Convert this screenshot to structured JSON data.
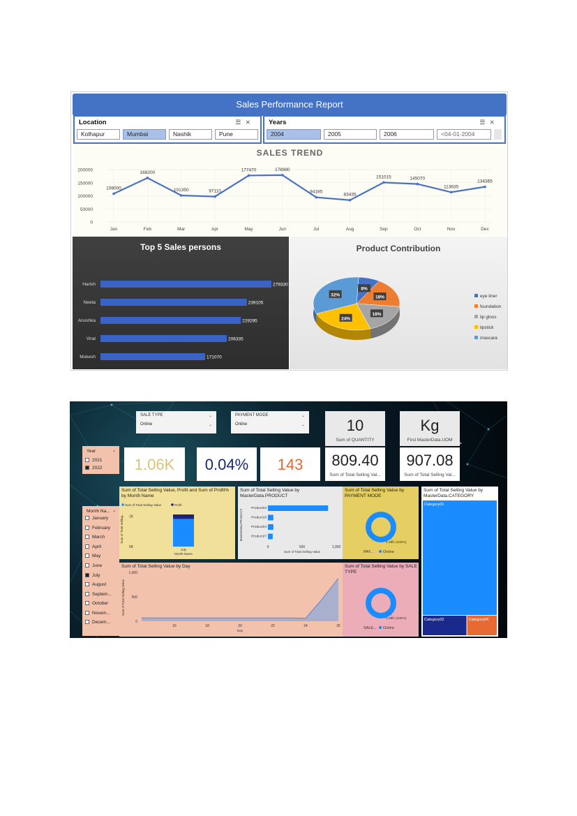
{
  "dashboard1": {
    "title": "Sales Performance Report",
    "location_slicer": {
      "title": "Location",
      "options": [
        "Kolhapur",
        "Mumbai",
        "Nashik",
        "Pune"
      ],
      "selected": "Mumbai"
    },
    "years_slicer": {
      "title": "Years",
      "options": [
        "2004",
        "2005",
        "2006",
        "<04-01-2004"
      ],
      "selected": "2004"
    },
    "slicer_icons": [
      "multi-select-icon",
      "clear-filter-icon"
    ]
  },
  "dashboard2": {
    "sale_type": {
      "label": "SALE TYPE",
      "value": "Online"
    },
    "payment_mode": {
      "label": "PAYMENT MODE",
      "value": "Online"
    },
    "kpis": [
      {
        "value": "10",
        "label": "Sum of QUANTITY"
      },
      {
        "value": "Kg",
        "label": "First MasterData.UOM"
      },
      {
        "value": "809.40",
        "label": "Sum of Total Selling Val..."
      },
      {
        "value": "907.08",
        "label": "Sum of Total Selling Val..."
      },
      {
        "value": "1.06K",
        "label": "",
        "color": "#d8c47a"
      },
      {
        "value": "0.04%",
        "label": "",
        "color": "#1a2a6c"
      },
      {
        "value": "143",
        "label": "",
        "color": "#e06a3a"
      }
    ],
    "year_slicer": {
      "title": "Year",
      "options": [
        "2021",
        "2022"
      ],
      "checked": [
        "2022"
      ]
    },
    "month_slicer": {
      "title": "Month Na...",
      "options": [
        "January",
        "February",
        "March",
        "April",
        "May",
        "June",
        "July",
        "August",
        "Septem...",
        "October",
        "Novem...",
        "Decem..."
      ],
      "checked": [
        "July"
      ]
    }
  },
  "chart_data": [
    {
      "type": "line",
      "title": "SALES TREND",
      "categories": [
        "Jan",
        "Feb",
        "Mar",
        "Apr",
        "May",
        "Jun",
        "Jul",
        "Aug",
        "Sep",
        "Oct",
        "Nov",
        "Dec"
      ],
      "values": [
        108000,
        168200,
        101350,
        97110,
        177470,
        178980,
        94185,
        83435,
        151015,
        145070,
        113635,
        134365
      ],
      "yticks": [
        "200000",
        "150000",
        "100000",
        "50000",
        "0"
      ],
      "ylim": [
        0,
        200000
      ],
      "grid": true,
      "color": "#4a72c4"
    },
    {
      "type": "bar",
      "orientation": "horizontal",
      "title": "Top 5 Sales persons",
      "categories": [
        "Harish",
        "Neeta",
        "Anushka",
        "Virat",
        "Mukesh"
      ],
      "values": [
        279330,
        239105,
        229295,
        206335,
        171070
      ],
      "color": "#3a63c6"
    },
    {
      "type": "pie",
      "title": "Product Contribution",
      "labels": [
        "eye liner",
        "foundation",
        "lip gloss",
        "lipstick",
        "mascara"
      ],
      "values": [
        8,
        18,
        18,
        24,
        32
      ],
      "data_labels": [
        "8%",
        "18%",
        "18%",
        "24%",
        "32%"
      ],
      "colors": [
        "#4472c4",
        "#ed7d31",
        "#a5a5a5",
        "#ffc000",
        "#5b9bd5"
      ],
      "legend": "right"
    },
    {
      "type": "bar",
      "title": "Sum of Total Selling Value, Profit and Sum of Profit% by Month Name",
      "legend": [
        "Sum of Total Selling Value",
        "Profit"
      ],
      "categories": [
        "July"
      ],
      "series": [
        {
          "name": "Sum of Total Selling Value",
          "values": [
            1060
          ]
        },
        {
          "name": "Profit",
          "values": [
            143
          ]
        }
      ],
      "xlabel": "Month Name",
      "ylabel": "Sum of Total Selling...",
      "yticks": [
        "1K",
        "0K"
      ],
      "colors": [
        "#1a8cff",
        "#1a237e"
      ]
    },
    {
      "type": "bar",
      "orientation": "horizontal",
      "title": "Sum of Total Selling Value by MasterData.PRODUCT",
      "categories": [
        "Product03",
        "Product18",
        "Product04",
        "Product27"
      ],
      "values": [
        880,
        80,
        80,
        70
      ],
      "xticks": [
        "0",
        "500",
        "1,000"
      ],
      "xlabel": "Sum of Total Selling Value",
      "ylabel": "MasterData.PRODUCT",
      "color": "#1a8cff"
    },
    {
      "type": "pie",
      "donut": true,
      "title": "Sum of Total Selling Value by PAYMENT MODE",
      "labels": [
        "Online"
      ],
      "values": [
        100
      ],
      "data_label": "1.06K (100%)",
      "legend_title": "PAY...",
      "color": "#1a8cff"
    },
    {
      "type": "area",
      "title": "Sum of Total Selling Value by Day",
      "x": [
        14,
        15,
        16,
        17,
        18,
        19,
        20,
        21,
        22,
        23,
        24,
        25,
        26
      ],
      "values": [
        70,
        70,
        70,
        70,
        70,
        70,
        70,
        70,
        70,
        70,
        60,
        450,
        880
      ],
      "xticks": [
        "16",
        "18",
        "20",
        "22",
        "24",
        "26"
      ],
      "yticks": [
        "1,000",
        "500",
        "0"
      ],
      "xlabel": "Day",
      "ylabel": "Sum of Total Selling Value",
      "ylim": [
        0,
        1000
      ],
      "color": "#8fa9d9"
    },
    {
      "type": "pie",
      "donut": true,
      "title": "Sum of Total Selling Value by SALE TYPE",
      "labels": [
        "Online"
      ],
      "values": [
        100
      ],
      "data_label": "1.06K (100%)",
      "legend_title": "SALE...",
      "color": "#1a8cff"
    },
    {
      "type": "treemap",
      "title": "Sum of Total Selling Value by MasterData.CATEGORY",
      "labels": [
        "Category01",
        "Category02",
        "Category04"
      ],
      "values": [
        80,
        12,
        8
      ],
      "colors": [
        "#1a8cff",
        "#1a2a8c",
        "#e86a33"
      ]
    }
  ]
}
